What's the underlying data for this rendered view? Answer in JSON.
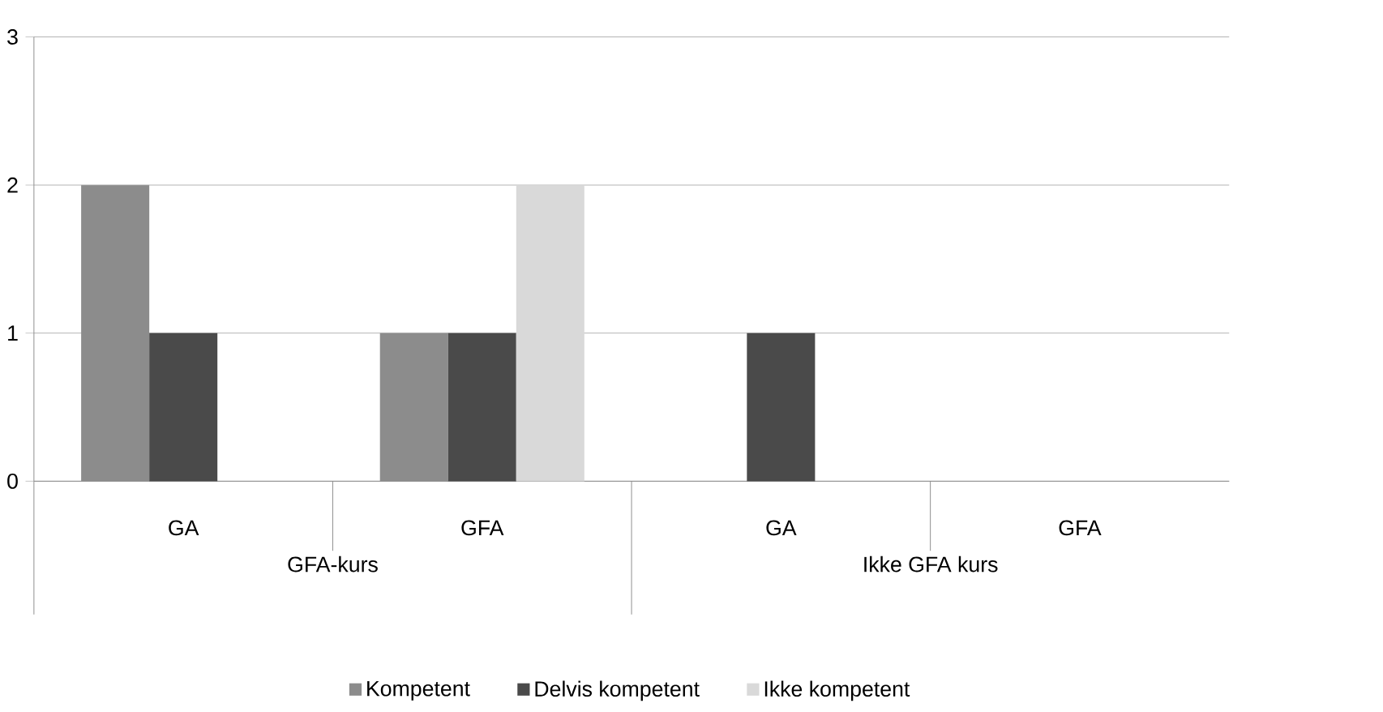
{
  "chart_data": {
    "type": "bar",
    "categories": [
      "GA",
      "GFA",
      "GA",
      "GFA"
    ],
    "annotations": [
      "GFA-kurs",
      "Ikke GFA kurs"
    ],
    "series": [
      {
        "name": "Kompetent",
        "color": "#8c8c8c",
        "values": [
          2,
          1,
          0,
          0
        ]
      },
      {
        "name": "Delvis kompetent",
        "color": "#4a4a4a",
        "values": [
          1,
          1,
          1,
          0
        ]
      },
      {
        "name": "Ikke kompetent",
        "color": "#d9d9d9",
        "values": [
          0,
          2,
          0,
          0
        ]
      }
    ],
    "ylim": [
      0,
      3
    ],
    "yticks": [
      0,
      1,
      2,
      3
    ],
    "grid": "y",
    "legend": "bottom"
  }
}
